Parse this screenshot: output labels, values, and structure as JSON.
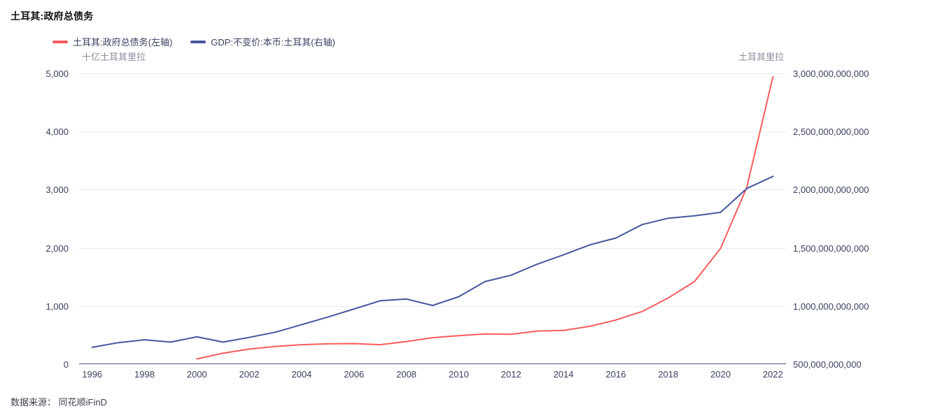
{
  "page": {
    "title": "土耳其:政府总债务",
    "source": "数据来源： 同花顺iFinD"
  },
  "legend": [
    {
      "label": "土耳其:政府总债务(左轴)",
      "color": "#f85c5c"
    },
    {
      "label": "GDP:不变价:本币:土耳其(右轴)",
      "color": "#47569e"
    }
  ],
  "axes": {
    "left_unit": "十亿土耳其里拉",
    "right_unit": "土耳其里拉",
    "left_ticks": [
      "5,000",
      "4,000",
      "3,000",
      "2,000",
      "1,000",
      "0"
    ],
    "right_ticks": [
      "3,000,000,000,000",
      "2,500,000,000,000",
      "2,000,000,000,000",
      "1,500,000,000,000",
      "1,000,000,000,000",
      "500,000,000,000"
    ],
    "x_ticks": [
      "1996",
      "1998",
      "2000",
      "2002",
      "2004",
      "2006",
      "2008",
      "2010",
      "2012",
      "2014",
      "2016",
      "2018",
      "2020",
      "2022"
    ]
  },
  "colors": {
    "grid": "#e9ebf2",
    "axis_line": "#4a5385",
    "tick_text": "#3a4060",
    "unit_text": "#8b8e9c"
  },
  "chart_data": {
    "type": "line",
    "title": "土耳其:政府总债务",
    "x": [
      1996,
      1997,
      1998,
      1999,
      2000,
      2001,
      2002,
      2003,
      2004,
      2005,
      2006,
      2007,
      2008,
      2009,
      2010,
      2011,
      2012,
      2013,
      2014,
      2015,
      2016,
      2017,
      2018,
      2019,
      2020,
      2021,
      2022
    ],
    "series": [
      {
        "name": "土耳其:政府总债务(左轴)",
        "axis": "left",
        "color": "#f85c5c",
        "unit": "十亿土耳其里拉",
        "values": [
          null,
          null,
          null,
          null,
          90,
          190,
          260,
          305,
          335,
          350,
          355,
          335,
          390,
          455,
          490,
          520,
          515,
          570,
          580,
          650,
          760,
          905,
          1140,
          1420,
          1990,
          3040,
          4940
        ]
      },
      {
        "name": "GDP:不变价:本币:土耳其(右轴)",
        "axis": "right",
        "color": "#47569e",
        "unit": "土耳其里拉",
        "values": [
          645000000000,
          685000000000,
          710000000000,
          690000000000,
          735000000000,
          690000000000,
          730000000000,
          775000000000,
          840000000000,
          905000000000,
          975000000000,
          1045000000000,
          1060000000000,
          1005000000000,
          1080000000000,
          1210000000000,
          1265000000000,
          1360000000000,
          1440000000000,
          1525000000000,
          1585000000000,
          1700000000000,
          1755000000000,
          1775000000000,
          1805000000000,
          2010000000000,
          2115000000000
        ]
      }
    ],
    "left_ylim": [
      0,
      5000
    ],
    "right_ylim": [
      500000000000,
      3000000000000
    ],
    "grid": true,
    "legend_position": "top-left",
    "xlabel": "",
    "ylabel_left": "十亿土耳其里拉",
    "ylabel_right": "土耳其里拉"
  }
}
